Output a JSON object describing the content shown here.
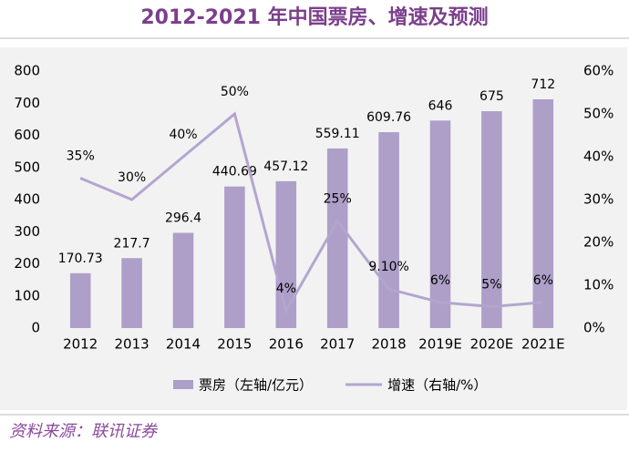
{
  "chart_data": {
    "type": "bar-line",
    "title": "2012-2021 年中国票房、增速及预测",
    "source": "资料来源：联讯证券",
    "categories": [
      "2012",
      "2013",
      "2014",
      "2015",
      "2016",
      "2017",
      "2018",
      "2019E",
      "2020E",
      "2021E"
    ],
    "series": [
      {
        "name": "票房（左轴/亿元）",
        "color": "#ad9fc8",
        "type": "bar",
        "values": [
          170.73,
          217.7,
          296.4,
          440.69,
          457.12,
          559.11,
          609.76,
          646,
          675,
          712
        ]
      },
      {
        "name": "增速（右轴/%）",
        "color": "#b4a5d0",
        "type": "line",
        "axis": "y2",
        "values": [
          35,
          30,
          40,
          50,
          4,
          25,
          9.1,
          6,
          5,
          6
        ],
        "value_labels": [
          "35%",
          "30%",
          "40%",
          "50%",
          "4%",
          "25%",
          "9.10%",
          "6%",
          "5%",
          "6%"
        ]
      }
    ],
    "ylim": [
      0,
      800
    ],
    "yticks": [
      0,
      100,
      200,
      300,
      400,
      500,
      600,
      700,
      800
    ],
    "y2lim": [
      0,
      60
    ],
    "y2ticks": [
      {
        "value": 0,
        "label": "0%"
      },
      {
        "value": 10,
        "label": "10%"
      },
      {
        "value": 20,
        "label": "20%"
      },
      {
        "value": 30,
        "label": "30%"
      },
      {
        "value": 40,
        "label": "40%"
      },
      {
        "value": 50,
        "label": "50%"
      },
      {
        "value": 60,
        "label": "60%"
      }
    ],
    "legend": "bottom"
  }
}
